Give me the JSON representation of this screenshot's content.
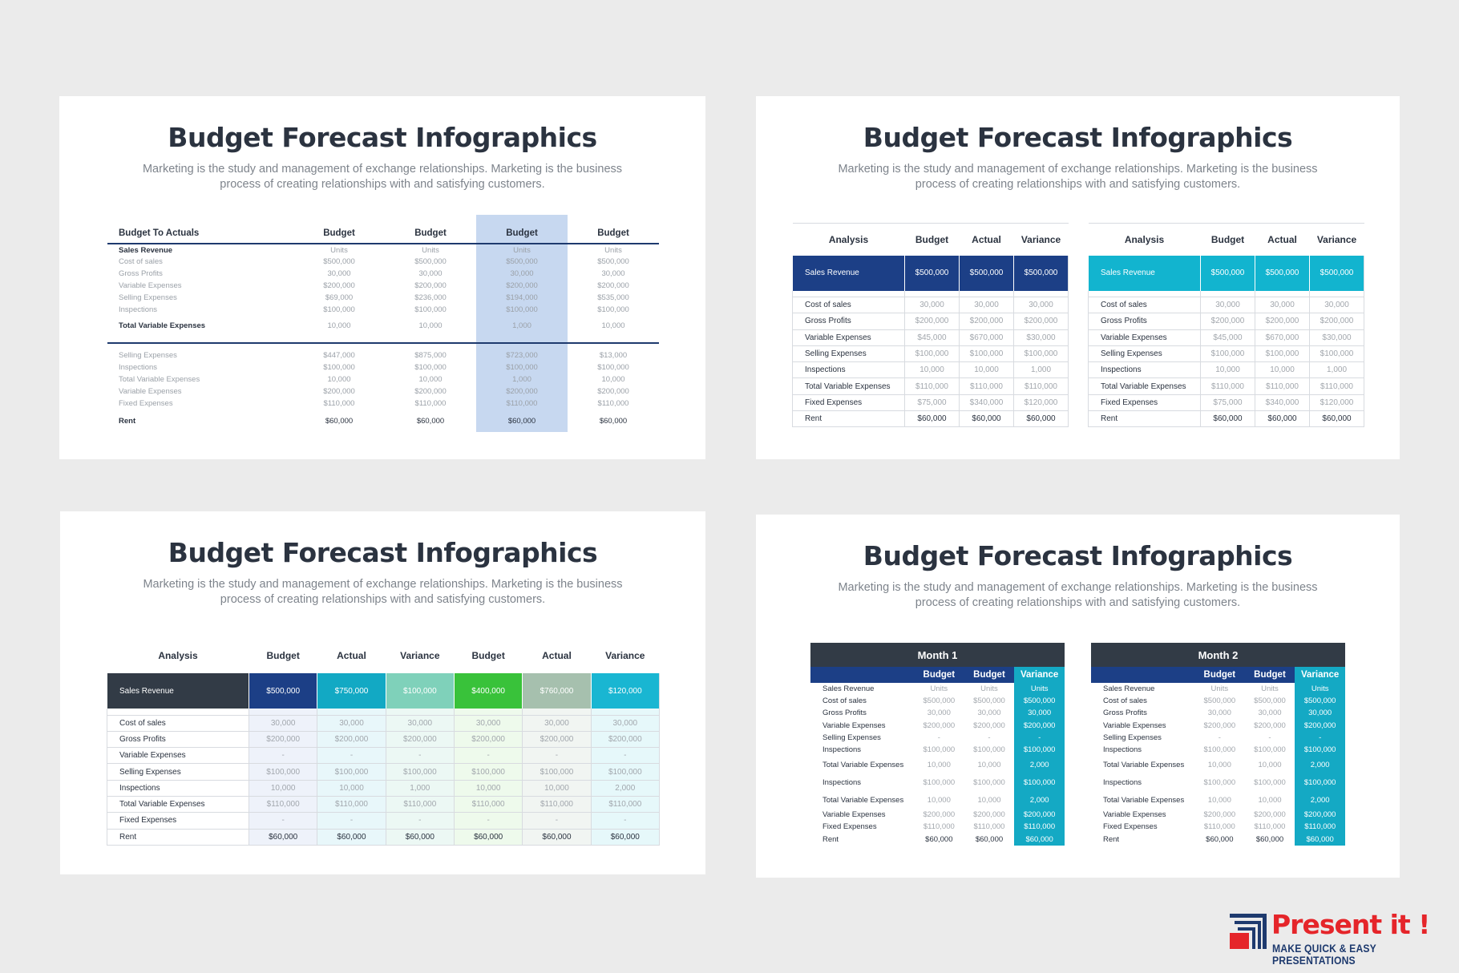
{
  "slides": {
    "title": "Budget Forecast Infographics",
    "subtitle_line1": "Marketing is the study and management of exchange relationships. Marketing is the business",
    "subtitle_line2": "process of creating relationships with and satisfying customers."
  },
  "slide1": {
    "header": [
      "Budget To Actuals",
      "Budget",
      "Budget",
      "Budget",
      "Budget"
    ],
    "rows_top": [
      [
        "Sales Revenue",
        "Units",
        "Units",
        "Units",
        "Units"
      ],
      [
        "Cost of sales",
        "$500,000",
        "$500,000",
        "$500,000",
        "$500,000"
      ],
      [
        "Gross Profits",
        "30,000",
        "30,000",
        "30,000",
        "30,000"
      ],
      [
        "Variable Expenses",
        "$200,000",
        "$200,000",
        "$200,000",
        "$200,000"
      ],
      [
        "Selling Expenses",
        "$69,000",
        "$236,000",
        "$194,000",
        "$535,000"
      ],
      [
        "Inspections",
        "$100,000",
        "$100,000",
        "$100,000",
        "$100,000"
      ]
    ],
    "total": [
      "Total Variable Expenses",
      "10,000",
      "10,000",
      "1,000",
      "10,000"
    ],
    "rows_bottom": [
      [
        "Selling Expenses",
        "$447,000",
        "$875,000",
        "$723,000",
        "$13,000"
      ],
      [
        "Inspections",
        "$100,000",
        "$100,000",
        "$100,000",
        "$100,000"
      ],
      [
        "Total Variable Expenses",
        "10,000",
        "10,000",
        "1,000",
        "10,000"
      ],
      [
        "Variable Expenses",
        "$200,000",
        "$200,000",
        "$200,000",
        "$200,000"
      ],
      [
        "Fixed Expenses",
        "$110,000",
        "$110,000",
        "$110,000",
        "$110,000"
      ]
    ],
    "rent": [
      "Rent",
      "$60,000",
      "$60,000",
      "$60,000",
      "$60,000"
    ]
  },
  "slide2": {
    "header": [
      "Analysis",
      "Budget",
      "Actual",
      "Variance"
    ],
    "hero": [
      "Sales Revenue",
      "$500,000",
      "$500,000",
      "$500,000"
    ],
    "rows": [
      [
        "Cost of sales",
        "30,000",
        "30,000",
        "30,000"
      ],
      [
        "Gross Profits",
        "$200,000",
        "$200,000",
        "$200,000"
      ],
      [
        "Variable Expenses",
        "$45,000",
        "$670,000",
        "$30,000"
      ],
      [
        "Selling Expenses",
        "$100,000",
        "$100,000",
        "$100,000"
      ],
      [
        "Inspections",
        "10,000",
        "10,000",
        "1,000"
      ],
      [
        "Total Variable Expenses",
        "$110,000",
        "$110,000",
        "$110,000"
      ],
      [
        "Fixed Expenses",
        "$75,000",
        "$340,000",
        "$120,000"
      ],
      [
        "Rent",
        "$60,000",
        "$60,000",
        "$60,000"
      ]
    ],
    "colors": {
      "left_hero": "#1c3f86",
      "right_hero": "#12b4cf"
    }
  },
  "slide3": {
    "header": [
      "Analysis",
      "Budget",
      "Actual",
      "Variance",
      "Budget",
      "Actual",
      "Variance"
    ],
    "hero": [
      "Sales Revenue",
      "$500,000",
      "$750,000",
      "$100,000",
      "$400,000",
      "$760,000",
      "$120,000"
    ],
    "rows": [
      [
        "Cost of sales",
        "30,000",
        "30,000",
        "30,000",
        "30,000",
        "30,000",
        "30,000"
      ],
      [
        "Gross Profits",
        "$200,000",
        "$200,000",
        "$200,000",
        "$200,000",
        "$200,000",
        "$200,000"
      ],
      [
        "Variable Expenses",
        "-",
        "-",
        "-",
        "-",
        "-",
        "-"
      ],
      [
        "Selling Expenses",
        "$100,000",
        "$100,000",
        "$100,000",
        "$100,000",
        "$100,000",
        "$100,000"
      ],
      [
        "Inspections",
        "10,000",
        "10,000",
        "1,000",
        "10,000",
        "10,000",
        "2,000"
      ],
      [
        "Total Variable Expenses",
        "$110,000",
        "$110,000",
        "$110,000",
        "$110,000",
        "$110,000",
        "$110,000"
      ],
      [
        "Fixed Expenses",
        "-",
        "-",
        "-",
        "-",
        "-",
        "-"
      ],
      [
        "Rent",
        "$60,000",
        "$60,000",
        "$60,000",
        "$60,000",
        "$60,000",
        "$60,000"
      ]
    ]
  },
  "slide4": {
    "months": [
      "Month 1",
      "Month 2"
    ],
    "header": [
      "",
      "Budget",
      "Budget",
      "Variance"
    ],
    "rows": [
      [
        "Sales Revenue",
        "Units",
        "Units",
        "Units"
      ],
      [
        "Cost of sales",
        "$500,000",
        "$500,000",
        "$500,000"
      ],
      [
        "Gross Profits",
        "30,000",
        "30,000",
        "30,000"
      ],
      [
        "Variable Expenses",
        "$200,000",
        "$200,000",
        "$200,000"
      ],
      [
        "Selling Expenses",
        "-",
        "-",
        "-"
      ],
      [
        "Inspections",
        "$100,000",
        "$100,000",
        "$100,000"
      ]
    ],
    "rows_tall": [
      [
        "Total Variable Expenses",
        "10,000",
        "10,000",
        "2,000"
      ],
      [
        "Inspections",
        "$100,000",
        "$100,000",
        "$100,000"
      ],
      [
        "Total Variable Expenses",
        "10,000",
        "10,000",
        "2,000"
      ]
    ],
    "rows_end": [
      [
        "Variable Expenses",
        "$200,000",
        "$200,000",
        "$200,000"
      ],
      [
        "Fixed Expenses",
        "$110,000",
        "$110,000",
        "$110,000"
      ],
      [
        "Rent",
        "$60,000",
        "$60,000",
        "$60,000"
      ]
    ]
  },
  "logo": {
    "name": "Present it !",
    "tagline": "MAKE QUICK & EASY PRESENTATIONS",
    "colors": {
      "red": "#e5252a",
      "navy": "#1e3a6e"
    }
  }
}
